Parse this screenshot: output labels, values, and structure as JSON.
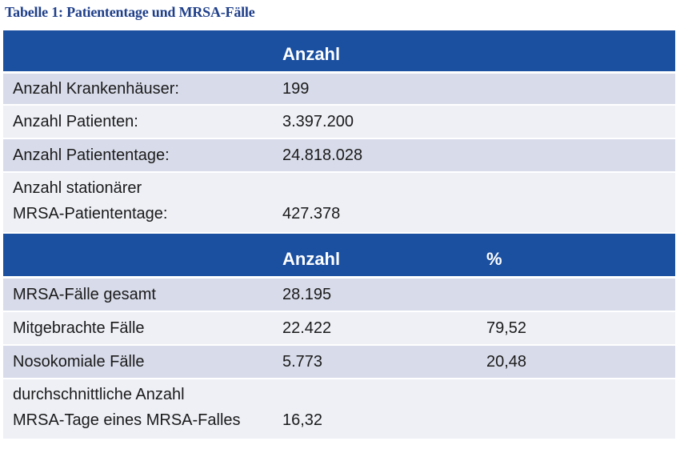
{
  "caption": "Tabelle 1: Patiententage und MRSA-Fälle",
  "section1": {
    "header": {
      "col_value": "Anzahl"
    },
    "rows": [
      {
        "label": "Anzahl Krankenhäuser:",
        "value": "199"
      },
      {
        "label": "Anzahl Patienten:",
        "value": "3.397.200"
      },
      {
        "label": "Anzahl Patiententage:",
        "value": "24.818.028"
      },
      {
        "label_line1": "Anzahl stationärer",
        "label_line2": "MRSA-Patiententage:",
        "value": "427.378"
      }
    ]
  },
  "section2": {
    "header": {
      "col_value": "Anzahl",
      "col_pct": "%"
    },
    "rows": [
      {
        "label": "MRSA-Fälle gesamt",
        "value": "28.195",
        "pct": ""
      },
      {
        "label": "Mitgebrachte Fälle",
        "value": "22.422",
        "pct": "79,52"
      },
      {
        "label": "Nosokomiale Fälle",
        "value": "5.773",
        "pct": "20,48"
      },
      {
        "label_line1": "durchschnittliche Anzahl",
        "label_line2": "MRSA-Tage eines MRSA-Falles",
        "value": "16,32",
        "pct": ""
      }
    ]
  },
  "colors": {
    "header_bg": "#1b4fa0",
    "row_shade": "#d8dcea",
    "row_light": "#eef0f6",
    "caption": "#1f3f8a"
  }
}
